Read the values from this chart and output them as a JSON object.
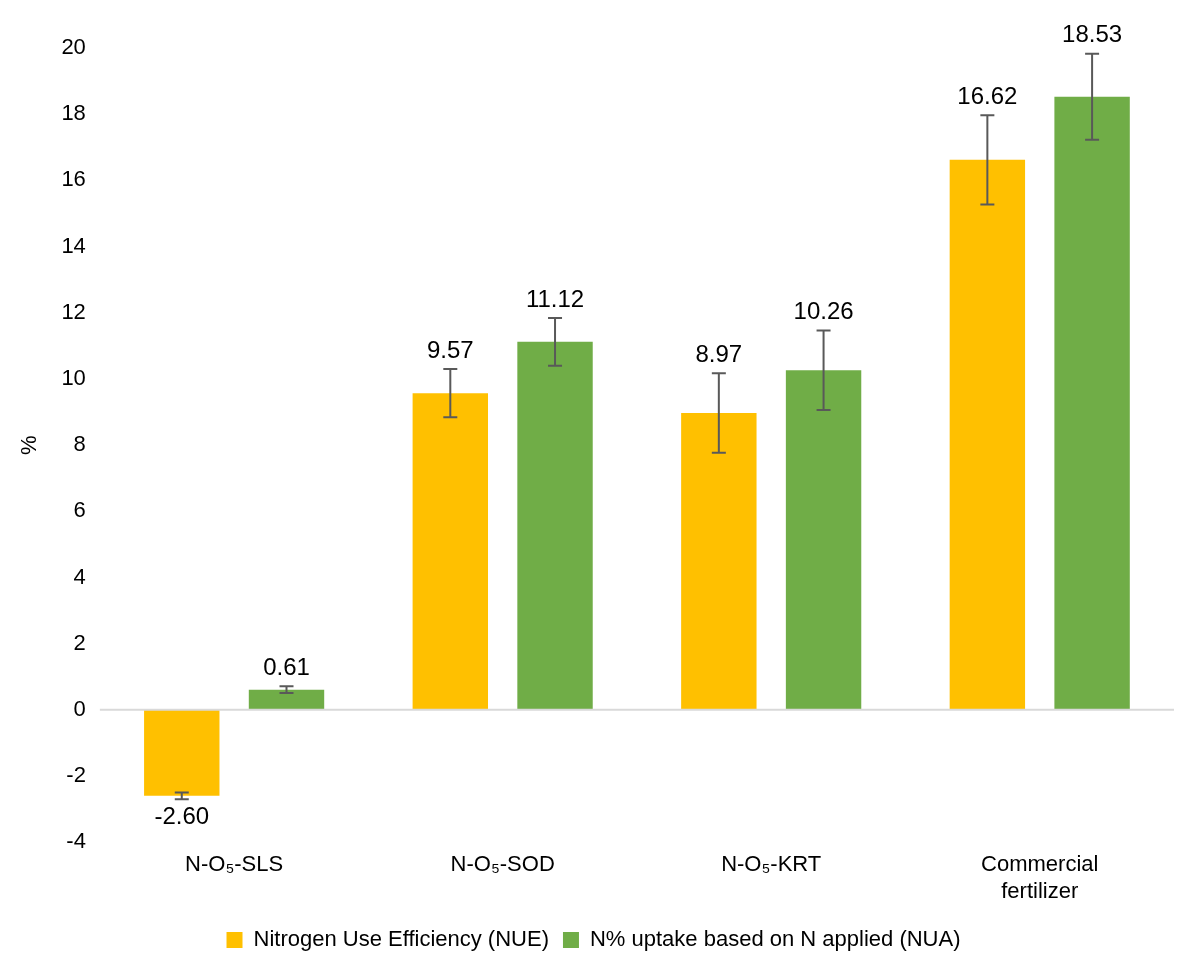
{
  "chart_data": {
    "type": "bar",
    "ylabel": "%",
    "categories": [
      "N-O₅-SLS",
      "N-O₅-SOD",
      "N-O₅-KRT",
      "Commercial fertilizer"
    ],
    "series": [
      {
        "name": "Nitrogen Use Efficiency (NUE)",
        "color": "#ffc000",
        "values": [
          -2.6,
          9.57,
          8.97,
          16.62
        ],
        "value_labels": [
          "-2.60",
          "9.57",
          "8.97",
          "16.62"
        ],
        "errors": [
          0.1,
          0.73,
          1.2,
          1.35
        ]
      },
      {
        "name": "N% uptake based on N applied (NUA)",
        "color": "#70ad47",
        "values": [
          0.61,
          11.12,
          10.26,
          18.53
        ],
        "value_labels": [
          "0.61",
          "11.12",
          "10.26",
          "18.53"
        ],
        "errors": [
          0.1,
          0.72,
          1.2,
          1.3
        ]
      }
    ],
    "ylim": [
      -4,
      20
    ],
    "yticks": [
      -4,
      -2,
      0,
      2,
      4,
      6,
      8,
      10,
      12,
      14,
      16,
      18,
      20
    ],
    "grid": false,
    "ref_lines": [
      {
        "axis": "y",
        "value": 0,
        "color": "#d9d9d9"
      }
    ],
    "legend": "bottom"
  }
}
